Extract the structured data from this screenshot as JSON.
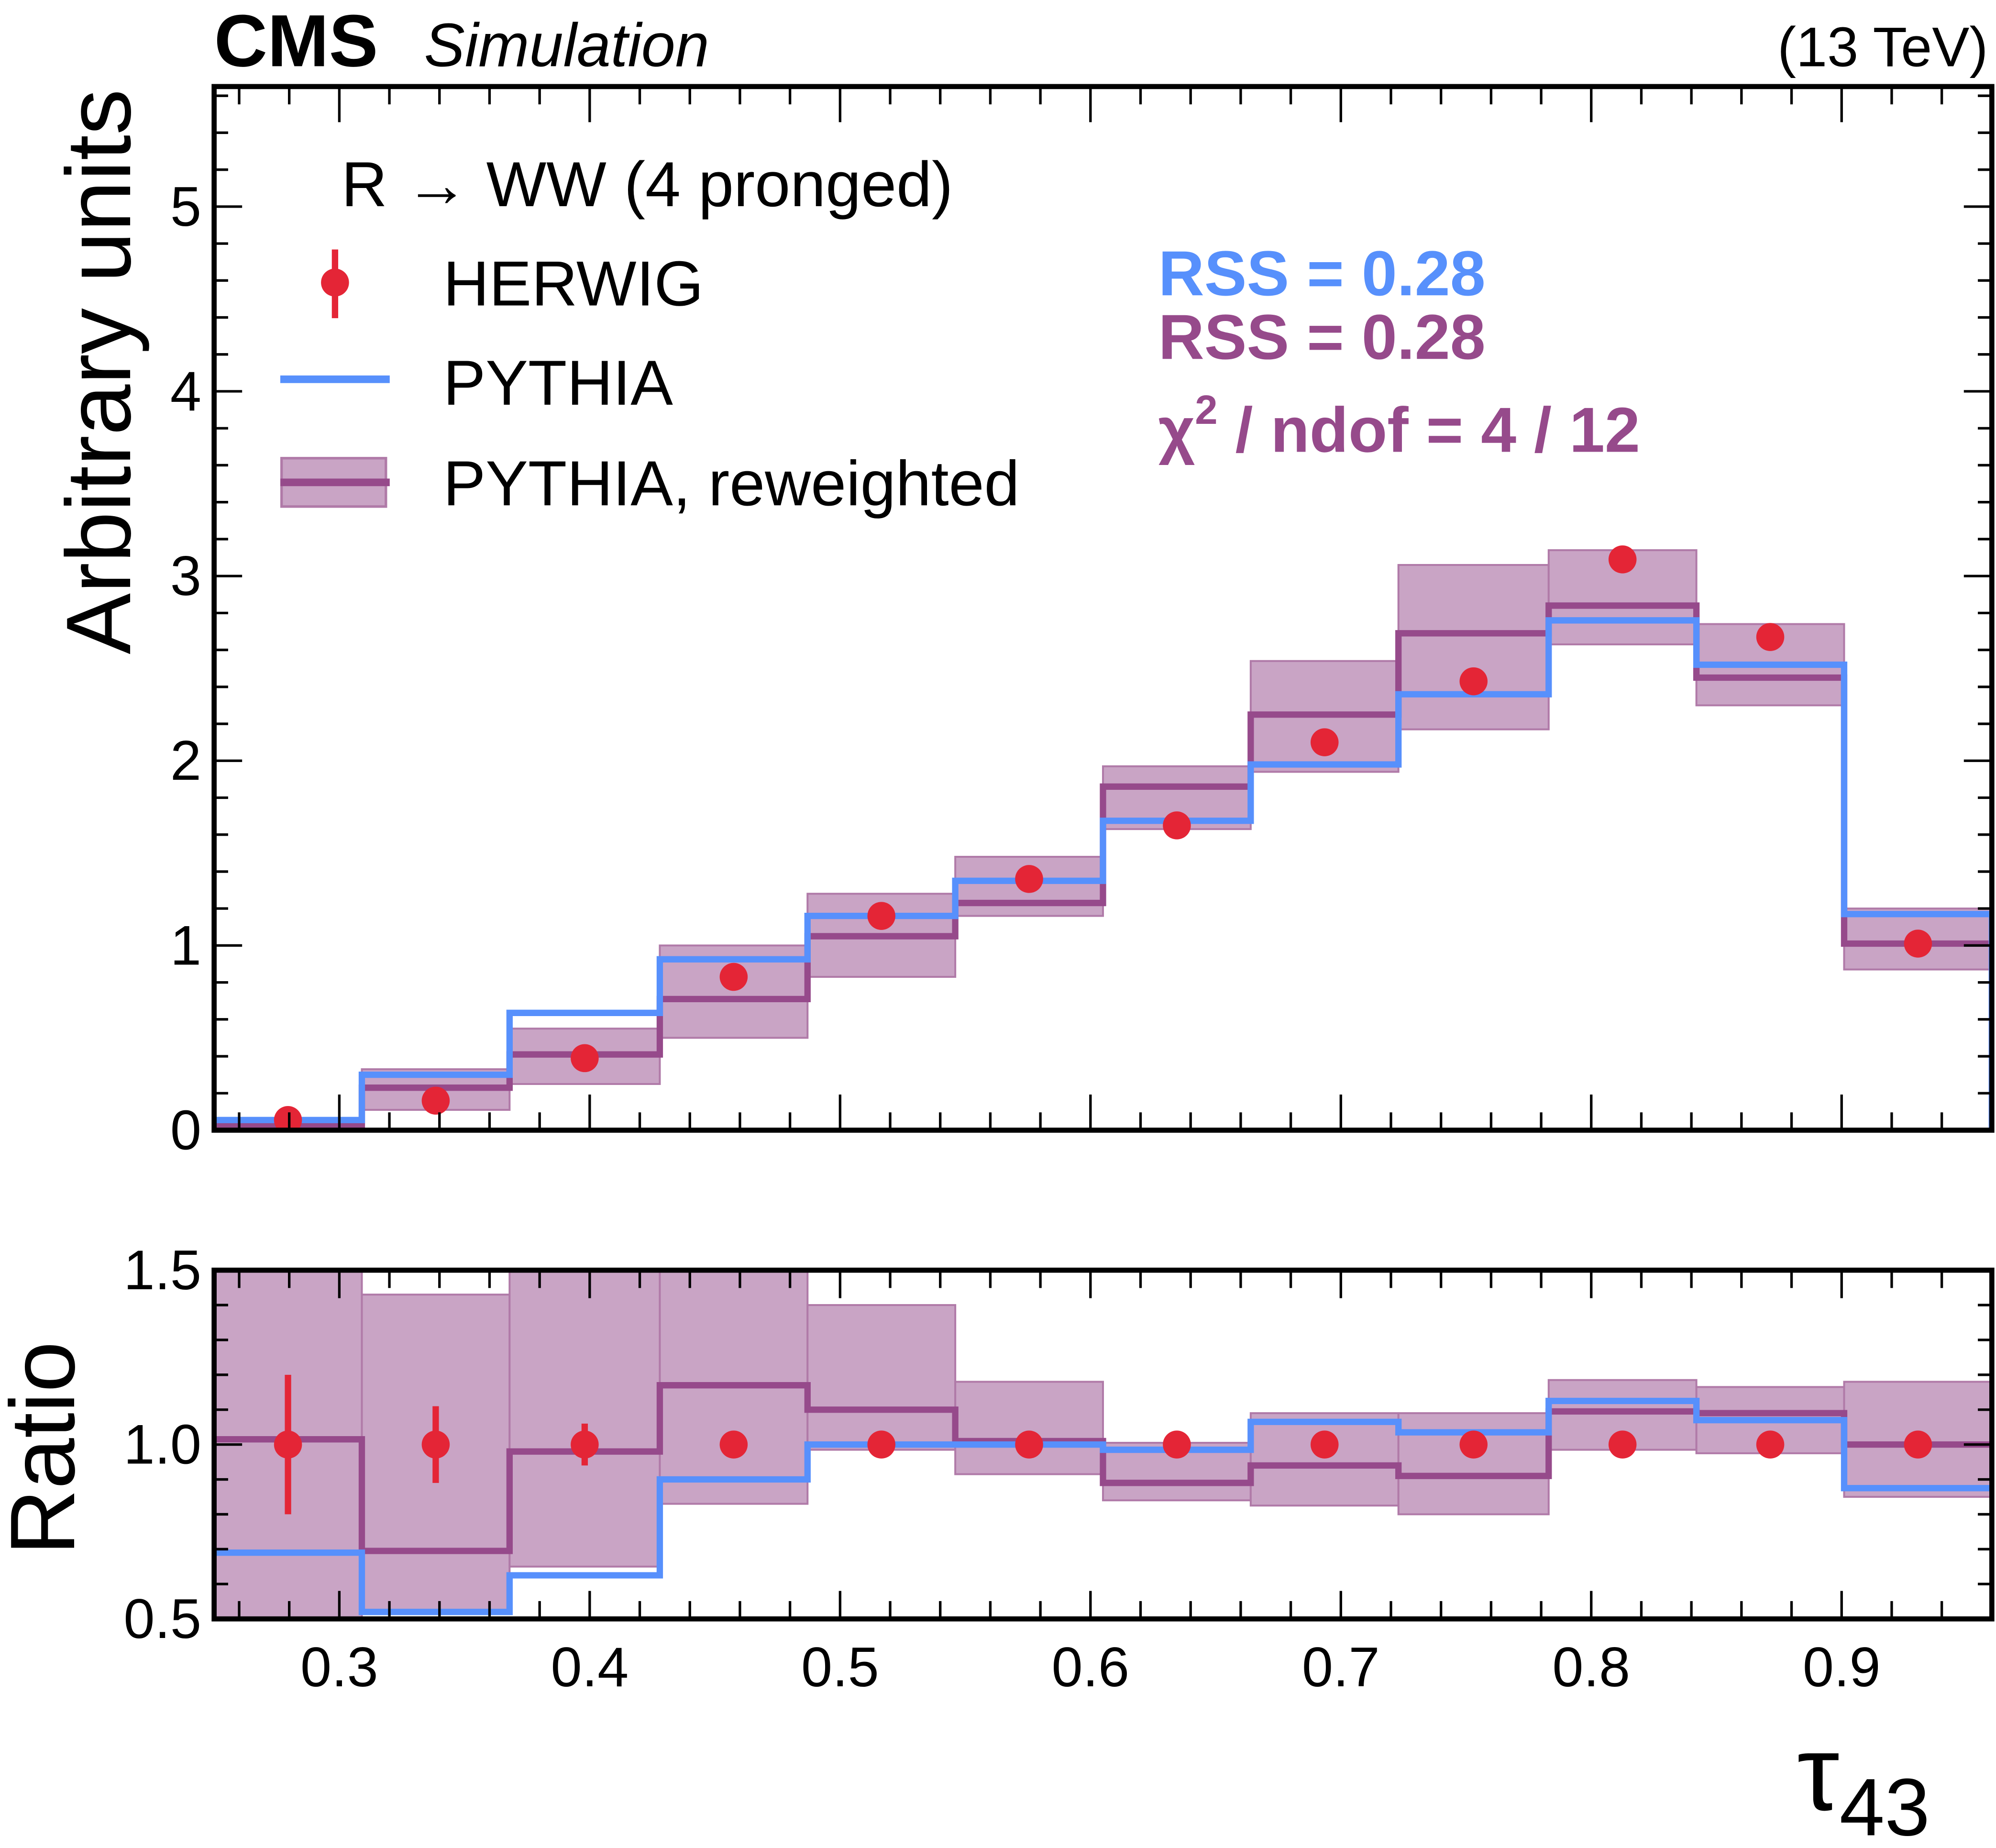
{
  "header": {
    "experiment": "CMS",
    "label": "Simulation",
    "energy": "(13 TeV)"
  },
  "legend": {
    "title": "R  → WW (4 pronged)",
    "entries": [
      "HERWIG",
      "PYTHIA",
      "PYTHIA, reweighted"
    ]
  },
  "annotations": {
    "rss_pythia": "RSS = 0.28",
    "rss_reweighted": "RSS = 0.28",
    "chi2_symbol": "χ",
    "chi2_sup": "2",
    "chi2_rest": " / ndof = 4 / 12"
  },
  "colors": {
    "herwig": "#e42536",
    "pythia": "#5790fc",
    "reweighted": "#964a8b",
    "band": "#c9a4c5"
  },
  "chart_data": [
    {
      "type": "line",
      "panel": "main",
      "ylabel": "Arbitrary units",
      "xlim": [
        0.25,
        0.96
      ],
      "ylim": [
        0,
        5.65
      ],
      "x_ticks": [
        "0.3",
        "0.4",
        "0.5",
        "0.6",
        "0.7",
        "0.8",
        "0.9"
      ],
      "y_ticks": [
        "0",
        "1",
        "2",
        "3",
        "4",
        "5"
      ],
      "bin_edges": [
        0.25,
        0.309,
        0.368,
        0.428,
        0.487,
        0.546,
        0.605,
        0.664,
        0.723,
        0.783,
        0.842,
        0.901,
        0.96
      ],
      "series": [
        {
          "name": "PYTHIA",
          "style": "step",
          "values": [
            0.055,
            0.3,
            0.635,
            0.925,
            1.16,
            1.35,
            1.675,
            1.98,
            2.36,
            2.76,
            2.52,
            1.17
          ]
        },
        {
          "name": "PYTHIA, reweighted",
          "style": "step",
          "values": [
            0.03,
            0.23,
            0.41,
            0.71,
            1.05,
            1.23,
            1.86,
            2.25,
            2.69,
            2.84,
            2.45,
            1.01
          ],
          "band_low": [
            0.01,
            0.11,
            0.25,
            0.5,
            0.83,
            1.16,
            1.63,
            1.94,
            2.17,
            2.63,
            2.3,
            0.87
          ],
          "band_high": [
            0.05,
            0.33,
            0.55,
            1.0,
            1.28,
            1.48,
            1.97,
            2.54,
            3.06,
            3.14,
            2.74,
            1.2
          ]
        },
        {
          "name": "HERWIG",
          "style": "points",
          "values": [
            0.055,
            0.16,
            0.39,
            0.83,
            1.16,
            1.36,
            1.65,
            2.1,
            2.43,
            3.09,
            2.67,
            1.01
          ],
          "errors": [
            0.01,
            0.02,
            0.03,
            0.03,
            0.03,
            0.03,
            0.03,
            0.03,
            0.03,
            0.03,
            0.03,
            0.02
          ]
        }
      ]
    },
    {
      "type": "line",
      "panel": "ratio",
      "ylabel": "Ratio",
      "xlabel": "τ",
      "xlabel_sub": "43",
      "xlim": [
        0.25,
        0.96
      ],
      "ylim": [
        0.5,
        1.5
      ],
      "y_ticks": [
        "0.5",
        "1.0",
        "1.5"
      ],
      "series": [
        {
          "name": "PYTHIA",
          "style": "step",
          "values": [
            0.69,
            0.52,
            0.625,
            0.9,
            1.0,
            1.0,
            0.985,
            1.065,
            1.035,
            1.125,
            1.07,
            0.875
          ]
        },
        {
          "name": "PYTHIA, reweighted",
          "style": "step",
          "values": [
            1.015,
            0.695,
            0.98,
            1.17,
            1.1,
            1.01,
            0.89,
            0.94,
            0.91,
            1.095,
            1.09,
            1.0
          ],
          "band_low": [
            0.45,
            0.52,
            0.65,
            0.83,
            0.985,
            0.915,
            0.84,
            0.825,
            0.8,
            0.985,
            0.975,
            0.85
          ],
          "band_high": [
            1.6,
            1.43,
            1.6,
            1.6,
            1.4,
            1.18,
            1.005,
            1.09,
            1.09,
            1.185,
            1.165,
            1.18
          ]
        },
        {
          "name": "HERWIG",
          "style": "points",
          "values": [
            1,
            1,
            1,
            1,
            1,
            1,
            1,
            1,
            1,
            1,
            1,
            1
          ],
          "errors": [
            0.2,
            0.11,
            0.06,
            0.03,
            0.01,
            0.01,
            0.01,
            0.01,
            0.01,
            0.01,
            0.01,
            0.01
          ]
        }
      ]
    }
  ]
}
